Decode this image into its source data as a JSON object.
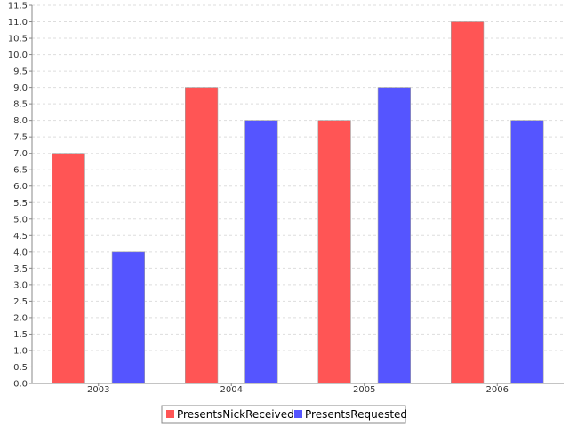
{
  "chart_data": {
    "type": "bar",
    "categories": [
      "2003",
      "2004",
      "2005",
      "2006"
    ],
    "series": [
      {
        "name": "PresentsNickReceived",
        "values": [
          7,
          9,
          8,
          11
        ],
        "color": "#ff5555"
      },
      {
        "name": "PresentsRequested",
        "values": [
          4,
          8,
          9,
          8
        ],
        "color": "#5555ff"
      }
    ],
    "title": "",
    "xlabel": "",
    "ylabel": "",
    "ylim": [
      0,
      11.5
    ],
    "ytick_step": 0.5,
    "yticks": [
      "0.0",
      "0.5",
      "1.0",
      "1.5",
      "2.0",
      "2.5",
      "3.0",
      "3.5",
      "4.0",
      "4.5",
      "5.0",
      "5.5",
      "6.0",
      "6.5",
      "7.0",
      "7.5",
      "8.0",
      "8.5",
      "9.0",
      "9.5",
      "10.0",
      "10.5",
      "11.0",
      "11.5"
    ],
    "grid": true,
    "legend": "bottom-center"
  }
}
